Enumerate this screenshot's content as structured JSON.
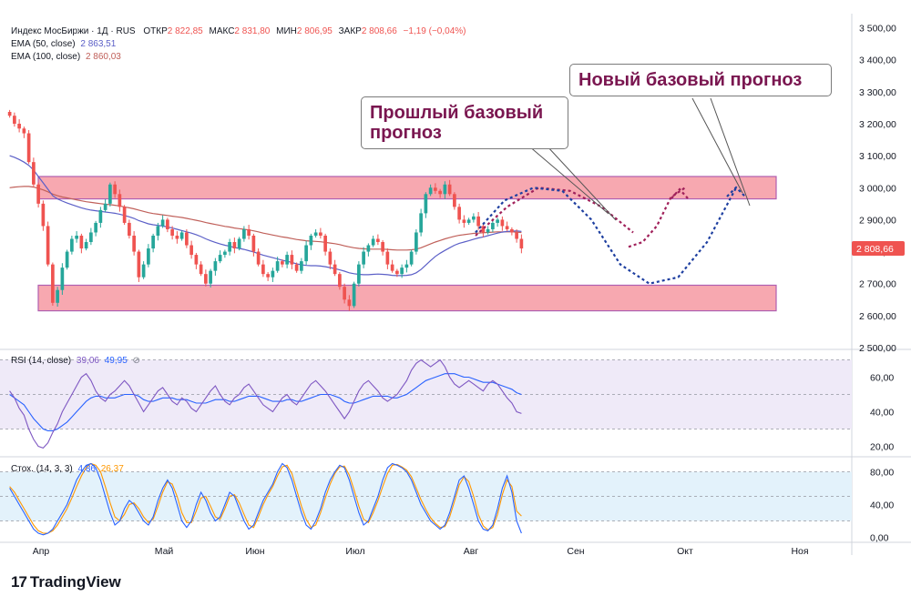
{
  "header": {
    "symbol": "Индекс МосБиржи · 1Д · RUS",
    "open_label": "ОТКР",
    "open": "2 822,85",
    "high_label": "МАКС",
    "high": "2 831,80",
    "low_label": "МИН",
    "low": "2 806,95",
    "close_label": "ЗАКР",
    "close": "2 808,66",
    "change": "−1,19 (−0,04%)",
    "up_color": "#26a69a",
    "down_color": "#ef5350"
  },
  "indicators": {
    "ema50": {
      "label": "EMA (50, close)",
      "value": "2 863,51",
      "color": "#5b5fc7"
    },
    "ema100": {
      "label": "EMA (100, close)",
      "value": "2 860,03",
      "color": "#c0605a"
    },
    "rsi": {
      "label": "RSI (14, close)",
      "value1": "39,06",
      "value2": "49,95",
      "icon": "eye-icon"
    },
    "stoch": {
      "label": "Стох. (14, 3, 3)",
      "value1": "4,86",
      "value2": "26,37"
    }
  },
  "callouts": {
    "previous": "Прошлый базовый прогноз",
    "new": "Новый базовый прогноз"
  },
  "last_price_badge": "2 808,66",
  "logo": "TradingView",
  "chart_data": [
    {
      "type": "candlestick",
      "x_labels": [
        "Апр",
        "Май",
        "Июн",
        "Июл",
        "Авг",
        "Сен",
        "Окт",
        "Ноя"
      ],
      "y_ticks": [
        "3 500,00",
        "3 400,00",
        "3 300,00",
        "3 200,00",
        "3 100,00",
        "3 000,00",
        "2 900,00",
        "2 800,00",
        "2 700,00",
        "2 600,00",
        "2 500,00"
      ],
      "ylim": [
        2500,
        3530
      ],
      "close": [
        3225,
        3200,
        3185,
        3170,
        3080,
        3010,
        2950,
        2880,
        2760,
        2640,
        2680,
        2750,
        2800,
        2840,
        2850,
        2810,
        2830,
        2860,
        2890,
        2930,
        2950,
        3010,
        2980,
        2940,
        2890,
        2850,
        2800,
        2720,
        2760,
        2810,
        2850,
        2880,
        2900,
        2870,
        2850,
        2840,
        2860,
        2820,
        2790,
        2760,
        2730,
        2700,
        2740,
        2770,
        2790,
        2800,
        2830,
        2810,
        2840,
        2870,
        2850,
        2800,
        2760,
        2730,
        2720,
        2740,
        2770,
        2760,
        2790,
        2760,
        2740,
        2770,
        2820,
        2850,
        2860,
        2850,
        2800,
        2760,
        2730,
        2690,
        2650,
        2630,
        2700,
        2760,
        2800,
        2820,
        2840,
        2830,
        2800,
        2760,
        2740,
        2730,
        2750,
        2760,
        2800,
        2860,
        2920,
        2980,
        3000,
        2990,
        2980,
        3010,
        2980,
        2940,
        2900,
        2890,
        2900,
        2910,
        2880,
        2860,
        2870,
        2890,
        2900,
        2880,
        2870,
        2860,
        2840,
        2810
      ],
      "ema50": [
        3100,
        3095,
        3088,
        3080,
        3070,
        3055,
        3035,
        3015,
        2995,
        2975,
        2965,
        2958,
        2952,
        2947,
        2942,
        2937,
        2933,
        2930,
        2928,
        2926,
        2924,
        2922,
        2920,
        2917,
        2913,
        2909,
        2904,
        2897,
        2892,
        2887,
        2884,
        2882,
        2880,
        2877,
        2874,
        2870,
        2866,
        2862,
        2858,
        2853,
        2847,
        2840,
        2834,
        2829,
        2824,
        2820,
        2817,
        2813,
        2810,
        2807,
        2803,
        2799,
        2794,
        2789,
        2785,
        2781,
        2777,
        2773,
        2770,
        2766,
        2762,
        2759,
        2757,
        2756,
        2756,
        2755,
        2753,
        2750,
        2747,
        2743,
        2739,
        2734,
        2731,
        2729,
        2728,
        2728,
        2729,
        2730,
        2729,
        2728,
        2726,
        2725,
        2725,
        2726,
        2728,
        2734,
        2744,
        2758,
        2772,
        2785,
        2795,
        2804,
        2812,
        2820,
        2826,
        2830,
        2834,
        2839,
        2843,
        2846,
        2850,
        2854,
        2858,
        2861,
        2863,
        2864,
        2865,
        2863
      ],
      "ema100": [
        3000,
        3002,
        3003,
        3004,
        3004,
        3002,
        2998,
        2993,
        2987,
        2980,
        2975,
        2971,
        2968,
        2965,
        2962,
        2959,
        2956,
        2954,
        2952,
        2950,
        2948,
        2947,
        2945,
        2943,
        2940,
        2937,
        2934,
        2930,
        2926,
        2922,
        2919,
        2917,
        2915,
        2913,
        2911,
        2909,
        2907,
        2904,
        2901,
        2898,
        2895,
        2891,
        2888,
        2885,
        2882,
        2879,
        2877,
        2874,
        2872,
        2870,
        2868,
        2865,
        2862,
        2858,
        2855,
        2852,
        2849,
        2846,
        2844,
        2841,
        2838,
        2836,
        2834,
        2833,
        2832,
        2831,
        2829,
        2827,
        2825,
        2822,
        2818,
        2815,
        2812,
        2810,
        2809,
        2808,
        2808,
        2808,
        2808,
        2807,
        2806,
        2805,
        2805,
        2805,
        2806,
        2808,
        2812,
        2818,
        2824,
        2830,
        2835,
        2840,
        2844,
        2848,
        2851,
        2853,
        2855,
        2857,
        2858,
        2859,
        2860,
        2861,
        2862,
        2862,
        2862,
        2862,
        2861,
        2860
      ],
      "previous_forecast": [
        [
          2850,
          2940,
          3000,
          2990,
          2940,
          2860
        ],
        [
          2815,
          2830,
          2880,
          2970,
          3000
        ]
      ],
      "new_forecast": [
        [
          2860,
          2960,
          3000,
          2990,
          2900,
          2760,
          2700,
          2720,
          2830,
          3000
        ]
      ]
    },
    {
      "type": "line",
      "name": "RSI",
      "y_ticks": [
        "60,00",
        "40,00",
        "20,00"
      ],
      "ylim": [
        15,
        75
      ],
      "rsi": [
        52,
        48,
        42,
        38,
        30,
        24,
        20,
        19,
        22,
        28,
        33,
        40,
        45,
        50,
        55,
        60,
        62,
        58,
        52,
        48,
        46,
        50,
        52,
        55,
        58,
        55,
        50,
        45,
        40,
        44,
        48,
        52,
        54,
        50,
        46,
        44,
        48,
        46,
        42,
        40,
        44,
        48,
        52,
        55,
        50,
        46,
        44,
        48,
        50,
        54,
        56,
        52,
        48,
        44,
        42,
        40,
        44,
        48,
        50,
        46,
        44,
        48,
        52,
        56,
        58,
        55,
        52,
        48,
        44,
        40,
        36,
        40,
        46,
        52,
        56,
        58,
        55,
        52,
        48,
        46,
        48,
        50,
        54,
        58,
        64,
        68,
        70,
        68,
        66,
        68,
        70,
        66,
        60,
        56,
        54,
        56,
        58,
        56,
        54,
        52,
        56,
        58,
        56,
        52,
        48,
        45,
        40,
        39
      ],
      "signal": [
        50,
        48,
        46,
        44,
        40,
        36,
        33,
        30,
        29,
        29,
        30,
        32,
        34,
        37,
        40,
        43,
        46,
        48,
        49,
        49,
        48,
        48,
        48,
        49,
        50,
        50,
        50,
        49,
        47,
        46,
        46,
        47,
        48,
        48,
        48,
        47,
        47,
        47,
        46,
        45,
        45,
        45,
        46,
        47,
        47,
        47,
        46,
        46,
        47,
        48,
        49,
        49,
        49,
        48,
        47,
        46,
        46,
        46,
        47,
        47,
        46,
        46,
        47,
        48,
        49,
        50,
        50,
        50,
        49,
        48,
        46,
        45,
        45,
        46,
        47,
        48,
        49,
        49,
        49,
        49,
        48,
        48,
        49,
        50,
        52,
        54,
        56,
        58,
        59,
        60,
        61,
        62,
        62,
        62,
        61,
        60,
        60,
        59,
        58,
        57,
        57,
        57,
        56,
        55,
        54,
        53,
        51,
        50
      ]
    },
    {
      "type": "line",
      "name": "Stoch",
      "y_ticks": [
        "80,00",
        "40,00",
        "0,00"
      ],
      "ylim": [
        -5,
        95
      ],
      "k": [
        60,
        50,
        40,
        30,
        20,
        10,
        5,
        3,
        5,
        10,
        20,
        30,
        40,
        55,
        70,
        80,
        88,
        90,
        85,
        70,
        50,
        30,
        15,
        20,
        35,
        45,
        40,
        30,
        20,
        15,
        25,
        45,
        60,
        70,
        60,
        40,
        20,
        12,
        20,
        40,
        55,
        45,
        30,
        20,
        25,
        40,
        55,
        50,
        35,
        20,
        10,
        15,
        30,
        45,
        55,
        65,
        80,
        90,
        85,
        70,
        50,
        30,
        15,
        10,
        20,
        35,
        55,
        70,
        80,
        88,
        85,
        70,
        50,
        30,
        15,
        20,
        35,
        50,
        70,
        85,
        90,
        88,
        85,
        80,
        70,
        55,
        40,
        30,
        20,
        15,
        10,
        15,
        30,
        50,
        70,
        75,
        60,
        40,
        20,
        10,
        8,
        15,
        35,
        60,
        75,
        55,
        20,
        5
      ],
      "d": [
        62,
        55,
        45,
        35,
        25,
        15,
        8,
        5,
        5,
        8,
        15,
        25,
        35,
        48,
        62,
        75,
        85,
        90,
        88,
        80,
        62,
        42,
        25,
        20,
        28,
        40,
        42,
        35,
        25,
        18,
        22,
        38,
        55,
        68,
        65,
        50,
        30,
        18,
        18,
        32,
        48,
        50,
        38,
        25,
        22,
        35,
        50,
        52,
        42,
        28,
        15,
        12,
        25,
        40,
        52,
        62,
        75,
        86,
        88,
        78,
        58,
        38,
        22,
        12,
        15,
        30,
        48,
        65,
        78,
        86,
        87,
        76,
        58,
        38,
        22,
        18,
        30,
        45,
        62,
        78,
        88,
        89,
        86,
        82,
        74,
        60,
        46,
        34,
        24,
        17,
        12,
        13,
        25,
        44,
        64,
        74,
        68,
        50,
        28,
        14,
        9,
        12,
        28,
        52,
        70,
        62,
        32,
        26
      ]
    }
  ]
}
